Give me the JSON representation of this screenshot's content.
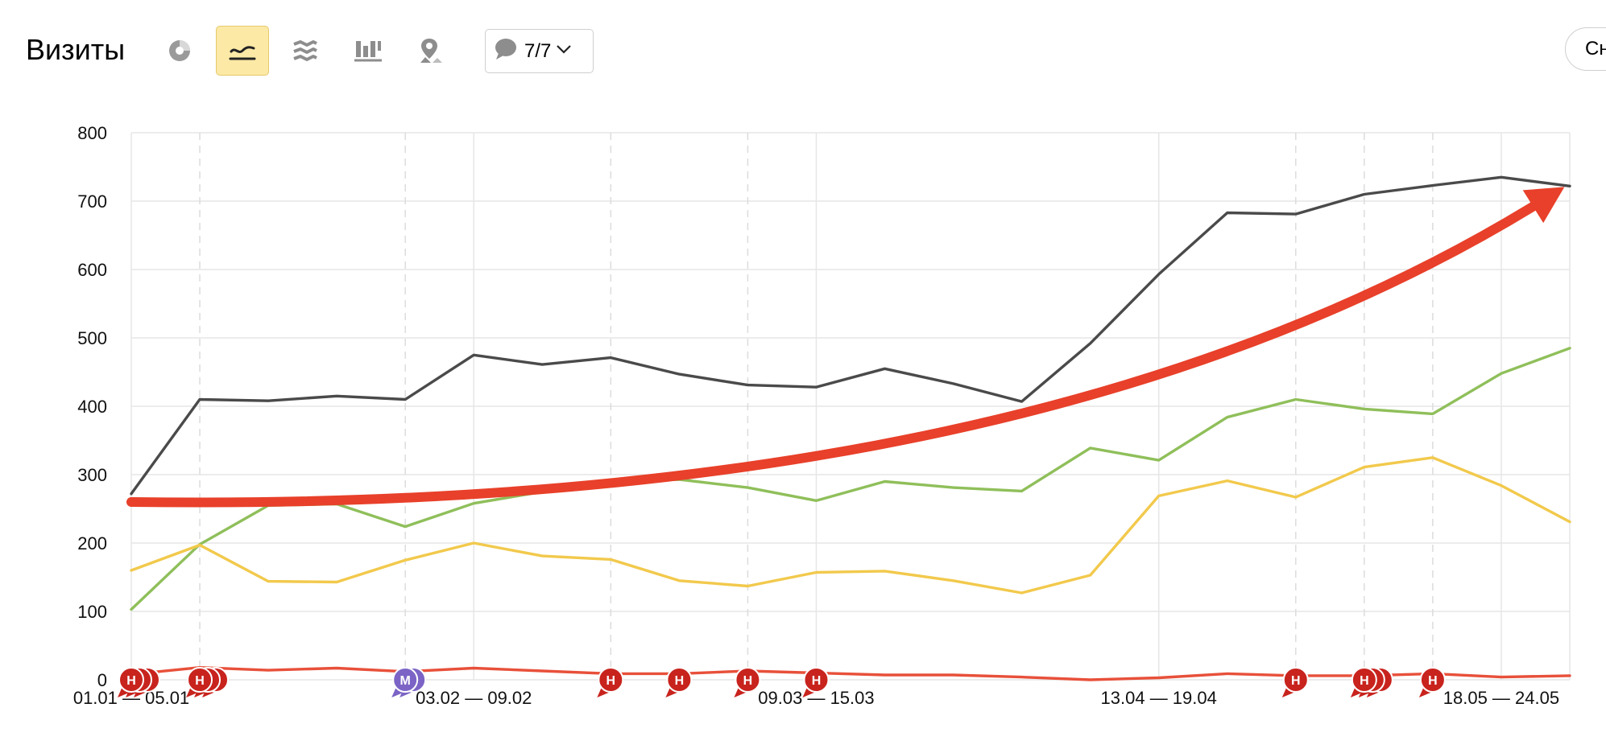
{
  "header": {
    "title": "Визиты",
    "annotations_count": "7/7",
    "right_button_label": "Сн",
    "tools": [
      {
        "name": "pie-chart-icon",
        "active": false
      },
      {
        "name": "line-chart-icon",
        "active": true
      },
      {
        "name": "area-chart-icon",
        "active": false
      },
      {
        "name": "bar-chart-icon",
        "active": false
      },
      {
        "name": "map-icon",
        "active": false
      }
    ]
  },
  "colors": {
    "grid": "#e6e6e6",
    "dashed": "#dcdcdc",
    "active_tool_bg": "#fce9a6",
    "trend_arrow": "#e8402a",
    "annotation_holiday": "#c8231d",
    "annotation_marketing": "#7b64c5"
  },
  "chart_data": {
    "type": "line",
    "ylim": [
      0,
      800
    ],
    "yticks": [
      0,
      100,
      200,
      300,
      400,
      500,
      600,
      700,
      800
    ],
    "x_labels": [
      {
        "index": 0,
        "text": "01.01 — 05.01"
      },
      {
        "index": 5,
        "text": "03.02 — 09.02"
      },
      {
        "index": 10,
        "text": "09.03 — 15.03"
      },
      {
        "index": 15,
        "text": "13.04 — 19.04"
      },
      {
        "index": 20,
        "text": "18.05 — 24.05"
      }
    ],
    "point_count": 22,
    "dashed_gridline_indices": [
      1,
      4,
      7,
      9,
      17,
      18,
      19
    ],
    "series": [
      {
        "color": "#4a4a4a",
        "values": [
          272,
          410,
          408,
          415,
          410,
          475,
          461,
          471,
          447,
          431,
          428,
          455,
          433,
          407,
          492,
          593,
          683,
          681,
          710,
          723,
          735,
          722
        ]
      },
      {
        "color": "#8fbf5a",
        "values": [
          103,
          198,
          255,
          257,
          224,
          258,
          275,
          290,
          293,
          281,
          262,
          290,
          281,
          276,
          339,
          321,
          384,
          410,
          396,
          389,
          448,
          485
        ]
      },
      {
        "color": "#f2c94c",
        "values": [
          160,
          197,
          144,
          143,
          175,
          200,
          181,
          176,
          145,
          137,
          157,
          159,
          145,
          127,
          153,
          269,
          291,
          267,
          311,
          325,
          284,
          231
        ]
      },
      {
        "color": "#e8503a",
        "values": [
          8,
          18,
          14,
          17,
          12,
          17,
          13,
          9,
          9,
          13,
          10,
          7,
          7,
          4,
          0,
          3,
          9,
          6,
          6,
          9,
          4,
          6
        ]
      }
    ],
    "trend_arrow": {
      "from": 260,
      "to": 705
    },
    "annotations": [
      {
        "index": 0,
        "letter": "Н",
        "stack": 3,
        "type": "holiday"
      },
      {
        "index": 1,
        "letter": "Н",
        "stack": 3,
        "type": "holiday"
      },
      {
        "index": 4,
        "letter": "М",
        "stack": 2,
        "type": "marketing"
      },
      {
        "index": 7,
        "letter": "Н",
        "stack": 1,
        "type": "holiday"
      },
      {
        "index": 8,
        "letter": "Н",
        "stack": 1,
        "type": "holiday"
      },
      {
        "index": 9,
        "letter": "Н",
        "stack": 1,
        "type": "holiday"
      },
      {
        "index": 10,
        "letter": "Н",
        "stack": 1,
        "type": "holiday"
      },
      {
        "index": 17,
        "letter": "Н",
        "stack": 1,
        "type": "holiday"
      },
      {
        "index": 18,
        "letter": "Н",
        "stack": 3,
        "type": "holiday"
      },
      {
        "index": 19,
        "letter": "Н",
        "stack": 1,
        "type": "holiday"
      }
    ]
  }
}
